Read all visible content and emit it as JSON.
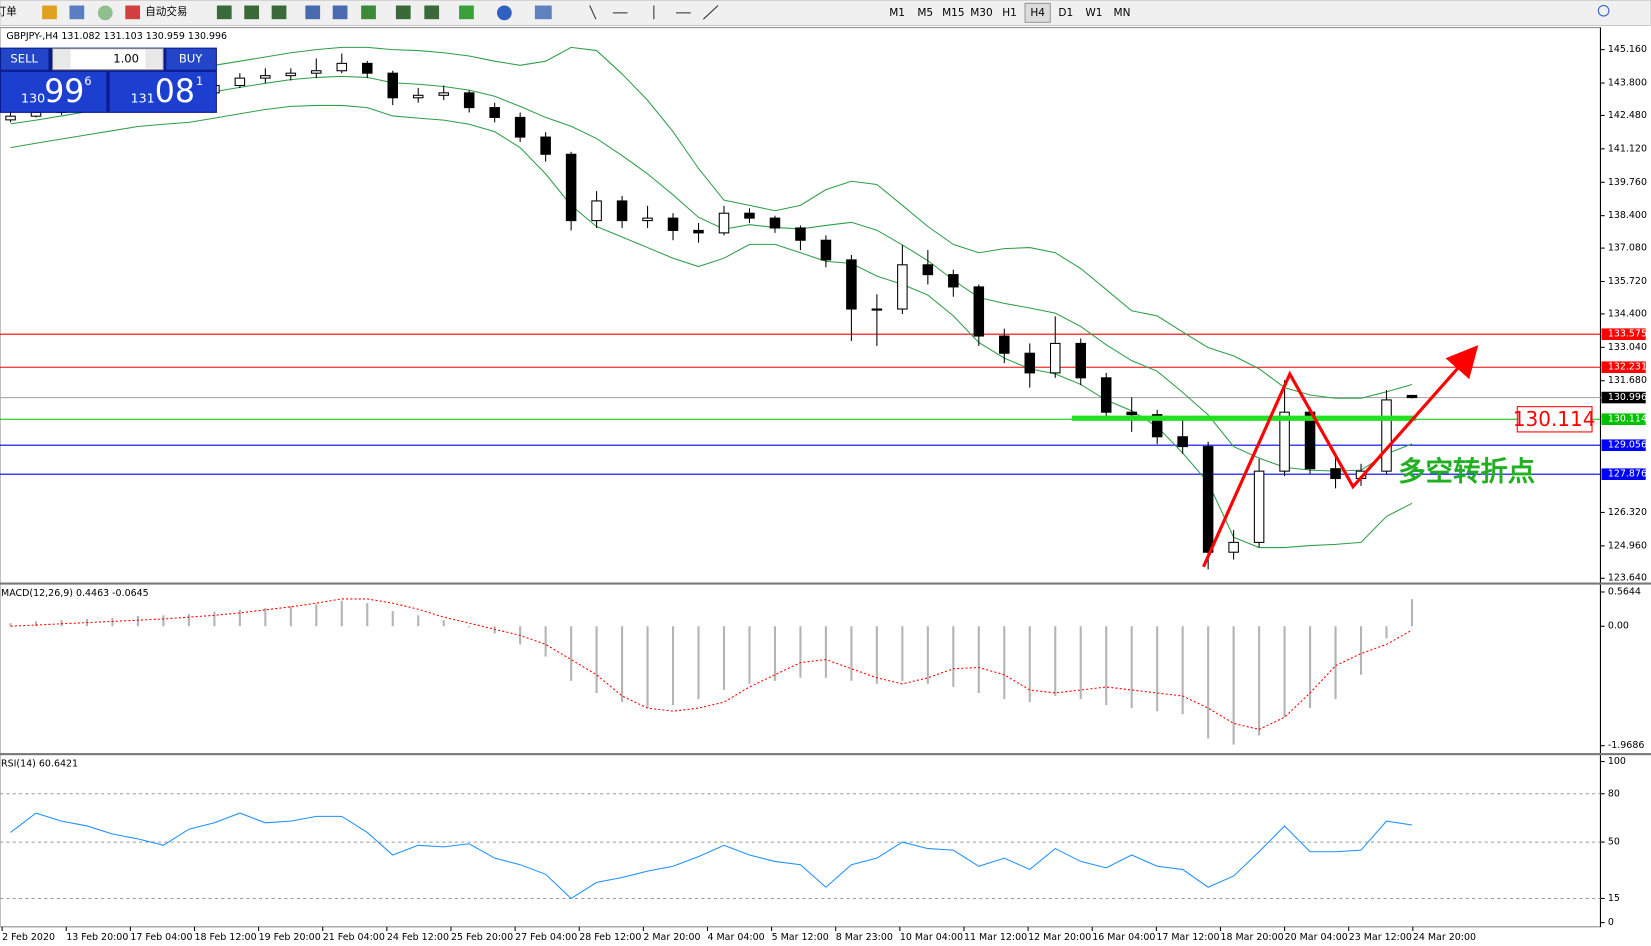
{
  "toolbar": {
    "new_order": "新订单",
    "auto_trading": "自动交易",
    "timeframes": [
      "M1",
      "M5",
      "M15",
      "M30",
      "H1",
      "H4",
      "D1",
      "W1",
      "MN"
    ],
    "active": "H4"
  },
  "trade_panel": {
    "sell": "SELL",
    "buy": "BUY",
    "lot": "1.00",
    "bid": {
      "big": "130",
      "pips": "99",
      "frac": "6"
    },
    "ask": {
      "big": "131",
      "pips": "08",
      "frac": "1"
    }
  },
  "chart_data": [
    {
      "type": "candlestick",
      "title": "GBPJPY-,H4",
      "ohlc": [
        [
          142.3,
          142.6,
          142.2,
          142.45
        ],
        [
          142.45,
          142.7,
          142.4,
          142.6
        ],
        [
          142.6,
          142.9,
          142.5,
          142.8
        ],
        [
          142.8,
          143.1,
          142.7,
          142.9
        ],
        [
          142.9,
          143.2,
          142.8,
          143.0
        ],
        [
          143.0,
          143.4,
          142.9,
          143.2
        ],
        [
          143.2,
          143.4,
          142.9,
          143.1
        ],
        [
          143.1,
          143.6,
          143.0,
          143.4
        ],
        [
          143.4,
          143.9,
          143.3,
          143.7
        ],
        [
          143.7,
          144.2,
          143.6,
          144.0
        ],
        [
          144.0,
          144.4,
          143.8,
          144.1
        ],
        [
          144.1,
          144.4,
          143.9,
          144.2
        ],
        [
          144.2,
          144.8,
          144.0,
          144.3
        ],
        [
          144.3,
          145.0,
          144.2,
          144.6
        ],
        [
          144.6,
          144.7,
          144.0,
          144.2
        ],
        [
          144.2,
          144.3,
          142.9,
          143.2
        ],
        [
          143.2,
          143.6,
          143.0,
          143.3
        ],
        [
          143.3,
          143.7,
          143.1,
          143.4
        ],
        [
          143.4,
          143.5,
          142.6,
          142.8
        ],
        [
          142.8,
          143.0,
          142.2,
          142.4
        ],
        [
          142.4,
          142.6,
          141.4,
          141.6
        ],
        [
          141.6,
          141.8,
          140.6,
          140.9
        ],
        [
          140.9,
          141.0,
          137.8,
          138.2
        ],
        [
          138.2,
          139.4,
          137.9,
          139.0
        ],
        [
          139.0,
          139.2,
          137.9,
          138.2
        ],
        [
          138.2,
          138.8,
          137.9,
          138.3
        ],
        [
          138.3,
          138.5,
          137.4,
          137.8
        ],
        [
          137.8,
          138.1,
          137.3,
          137.7
        ],
        [
          137.7,
          138.8,
          137.6,
          138.5
        ],
        [
          138.5,
          138.7,
          138.1,
          138.3
        ],
        [
          138.3,
          138.4,
          137.7,
          137.9
        ],
        [
          137.9,
          138.0,
          137.0,
          137.4
        ],
        [
          137.4,
          137.6,
          136.3,
          136.6
        ],
        [
          136.6,
          136.8,
          133.3,
          134.6
        ],
        [
          134.6,
          135.2,
          133.1,
          134.6
        ],
        [
          134.6,
          137.2,
          134.4,
          136.4
        ],
        [
          136.4,
          137.0,
          135.6,
          136.0
        ],
        [
          136.0,
          136.2,
          135.1,
          135.5
        ],
        [
          135.5,
          135.6,
          133.1,
          133.5
        ],
        [
          133.5,
          133.8,
          132.4,
          132.8
        ],
        [
          132.8,
          133.2,
          131.4,
          132.0
        ],
        [
          132.0,
          134.3,
          131.8,
          133.2
        ],
        [
          133.2,
          133.4,
          131.5,
          131.8
        ],
        [
          131.8,
          132.0,
          130.1,
          130.4
        ],
        [
          130.4,
          131.0,
          129.6,
          130.3
        ],
        [
          130.3,
          130.5,
          129.1,
          129.4
        ],
        [
          129.4,
          130.1,
          128.7,
          129.0
        ],
        [
          129.0,
          129.2,
          124.0,
          124.7
        ],
        [
          124.7,
          125.6,
          124.4,
          125.1
        ],
        [
          125.1,
          128.5,
          124.9,
          128.0
        ],
        [
          128.0,
          131.7,
          127.8,
          130.4
        ],
        [
          130.4,
          130.6,
          127.9,
          128.1
        ],
        [
          128.1,
          128.7,
          127.3,
          127.7
        ],
        [
          127.7,
          128.3,
          127.4,
          128.0
        ],
        [
          128.0,
          131.3,
          127.9,
          130.9
        ],
        [
          131.082,
          131.103,
          130.959,
          130.996
        ]
      ],
      "bands": {
        "color": "#2f9e4a",
        "upper": [
          143.1,
          143.23,
          143.4,
          143.57,
          143.75,
          143.96,
          144.17,
          144.35,
          144.52,
          144.69,
          144.86,
          145.03,
          145.16,
          145.25,
          145.25,
          145.16,
          145.12,
          145.03,
          144.9,
          144.69,
          144.52,
          144.69,
          145.25,
          145.12,
          144.17,
          143.1,
          141.82,
          140.32,
          139.03,
          138.82,
          138.6,
          138.82,
          139.46,
          139.8,
          139.67,
          138.82,
          137.96,
          137.23,
          136.89,
          137.06,
          137.1,
          136.89,
          136.25,
          135.39,
          134.53,
          134.32,
          133.67,
          133.03,
          132.69,
          132.17,
          131.4,
          131.1,
          130.97,
          130.97,
          131.23,
          131.53
        ],
        "middle": [
          142.14,
          142.29,
          142.46,
          142.63,
          142.81,
          143.0,
          143.15,
          143.28,
          143.45,
          143.62,
          143.79,
          143.94,
          144.03,
          144.07,
          144.03,
          143.81,
          143.75,
          143.66,
          143.51,
          143.26,
          142.85,
          142.4,
          142.04,
          141.54,
          140.85,
          140.1,
          139.25,
          138.33,
          137.85,
          138.03,
          137.92,
          137.86,
          138.0,
          138.13,
          137.81,
          137.21,
          136.57,
          135.78,
          135.07,
          134.83,
          134.64,
          134.43,
          133.89,
          133.14,
          132.5,
          132.07,
          131.21,
          130.29,
          129.0,
          128.53,
          128.15,
          128.04,
          128.0,
          128.04,
          128.7,
          129.11
        ],
        "lower": [
          141.17,
          141.35,
          141.52,
          141.69,
          141.86,
          142.03,
          142.12,
          142.2,
          142.37,
          142.55,
          142.72,
          142.85,
          142.89,
          142.89,
          142.8,
          142.46,
          142.37,
          142.29,
          142.12,
          141.82,
          141.17,
          140.1,
          138.82,
          137.96,
          137.53,
          137.1,
          136.67,
          136.33,
          136.67,
          137.23,
          137.23,
          136.89,
          136.54,
          136.46,
          135.94,
          135.6,
          135.17,
          134.32,
          133.24,
          132.6,
          132.17,
          131.96,
          131.53,
          130.89,
          130.46,
          129.81,
          128.74,
          127.54,
          125.31,
          124.89,
          124.89,
          124.97,
          125.02,
          125.1,
          126.16,
          126.69
        ]
      },
      "ylim": [
        123.51,
        145.97
      ],
      "yticks": [
        {
          "value": 145.16,
          "label": "145.160"
        },
        {
          "value": 143.8,
          "label": "143.800"
        },
        {
          "value": 142.48,
          "label": "142.480"
        },
        {
          "value": 141.12,
          "label": "141.120"
        },
        {
          "value": 139.76,
          "label": "139.760"
        },
        {
          "value": 138.4,
          "label": "138.400"
        },
        {
          "value": 137.08,
          "label": "137.080"
        },
        {
          "value": 135.72,
          "label": "135.720"
        },
        {
          "value": 134.4,
          "label": "134.400"
        },
        {
          "value": 133.04,
          "label": "133.040"
        },
        {
          "value": 131.68,
          "label": "131.680"
        },
        {
          "value": 126.32,
          "label": "126.320"
        },
        {
          "value": 124.96,
          "label": "124.960"
        },
        {
          "value": 123.64,
          "label": "123.640"
        }
      ],
      "levels": [
        {
          "value": 133.575,
          "color": "#ff0000"
        },
        {
          "value": 132.231,
          "color": "#ff0000"
        },
        {
          "value": 130.996,
          "color": "#000000"
        },
        {
          "value": 130.114,
          "color": "#00c000"
        },
        {
          "value": 129.056,
          "color": "#0000ff"
        },
        {
          "value": 127.876,
          "color": "#0000ff"
        }
      ],
      "annotation": "多空转折点",
      "x_labels": [
        "2 Feb 2020",
        "13 Feb 20:00",
        "17 Feb 04:00",
        "18 Feb 12:00",
        "19 Feb 20:00",
        "21 Feb 04:00",
        "24 Feb 12:00",
        "25 Feb 20:00",
        "27 Feb 04:00",
        "28 Feb 12:00",
        "2 Mar 20:00",
        "4 Mar 04:00",
        "5 Mar 12:00",
        "8 Mar 23:00",
        "10 Mar 04:00",
        "11 Mar 12:00",
        "12 Mar 20:00",
        "16 Mar 04:00",
        "17 Mar 12:00",
        "18 Mar 20:00",
        "20 Mar 04:00",
        "23 Mar 12:00",
        "24 Mar 20:00"
      ]
    },
    {
      "type": "bar",
      "title": "MACD(12,26,9)",
      "color": "#b4b4b4",
      "values": [
        0.05,
        0.08,
        0.1,
        0.12,
        0.14,
        0.17,
        0.18,
        0.2,
        0.24,
        0.27,
        0.3,
        0.33,
        0.36,
        0.42,
        0.38,
        0.25,
        0.18,
        0.1,
        -0.02,
        -0.12,
        -0.3,
        -0.5,
        -0.9,
        -1.1,
        -1.25,
        -1.35,
        -1.3,
        -1.2,
        -1.05,
        -0.95,
        -0.9,
        -0.85,
        -0.85,
        -0.9,
        -0.95,
        -0.9,
        -0.95,
        -1.0,
        -1.1,
        -1.2,
        -1.25,
        -1.15,
        -1.2,
        -1.3,
        -1.35,
        -1.4,
        -1.45,
        -1.85,
        -1.95,
        -1.8,
        -1.5,
        -1.35,
        -1.2,
        -0.8,
        -0.2,
        0.4463
      ],
      "signal": {
        "color": "#ff0000",
        "values": [
          0.0,
          0.02,
          0.04,
          0.06,
          0.08,
          0.1,
          0.12,
          0.15,
          0.18,
          0.22,
          0.27,
          0.32,
          0.38,
          0.45,
          0.45,
          0.38,
          0.28,
          0.15,
          0.05,
          -0.05,
          -0.15,
          -0.3,
          -0.55,
          -0.8,
          -1.15,
          -1.35,
          -1.4,
          -1.35,
          -1.25,
          -1.0,
          -0.8,
          -0.6,
          -0.55,
          -0.7,
          -0.85,
          -0.95,
          -0.85,
          -0.7,
          -0.68,
          -0.8,
          -1.05,
          -1.1,
          -1.05,
          -1.0,
          -1.05,
          -1.1,
          -1.15,
          -1.35,
          -1.6,
          -1.7,
          -1.5,
          -1.1,
          -0.65,
          -0.45,
          -0.3,
          -0.0645
        ]
      },
      "ylim": [
        -2.0727,
        0.6685
      ],
      "yticks": [
        0.5644,
        {
          "value": 0,
          "label": "0.00"
        },
        -1.9686
      ]
    },
    {
      "type": "line",
      "title": "RSI(14)",
      "color": "#1e90ff",
      "grid": true,
      "values": [
        56,
        68,
        63,
        60,
        55,
        52,
        48,
        58,
        62,
        68,
        62,
        63,
        66,
        66,
        56,
        42,
        48,
        47,
        49,
        40,
        36,
        30,
        15,
        25,
        28,
        32,
        35,
        41,
        48,
        42,
        38,
        36,
        22,
        36,
        40,
        50,
        46,
        45,
        35,
        40,
        33,
        46,
        38,
        34,
        42,
        35,
        33,
        22,
        29,
        44,
        60,
        44,
        44,
        45,
        63,
        60.6421
      ],
      "ylim": [
        -2.6,
        103.3
      ],
      "yticks": [
        100,
        80,
        50,
        15,
        0
      ]
    }
  ]
}
